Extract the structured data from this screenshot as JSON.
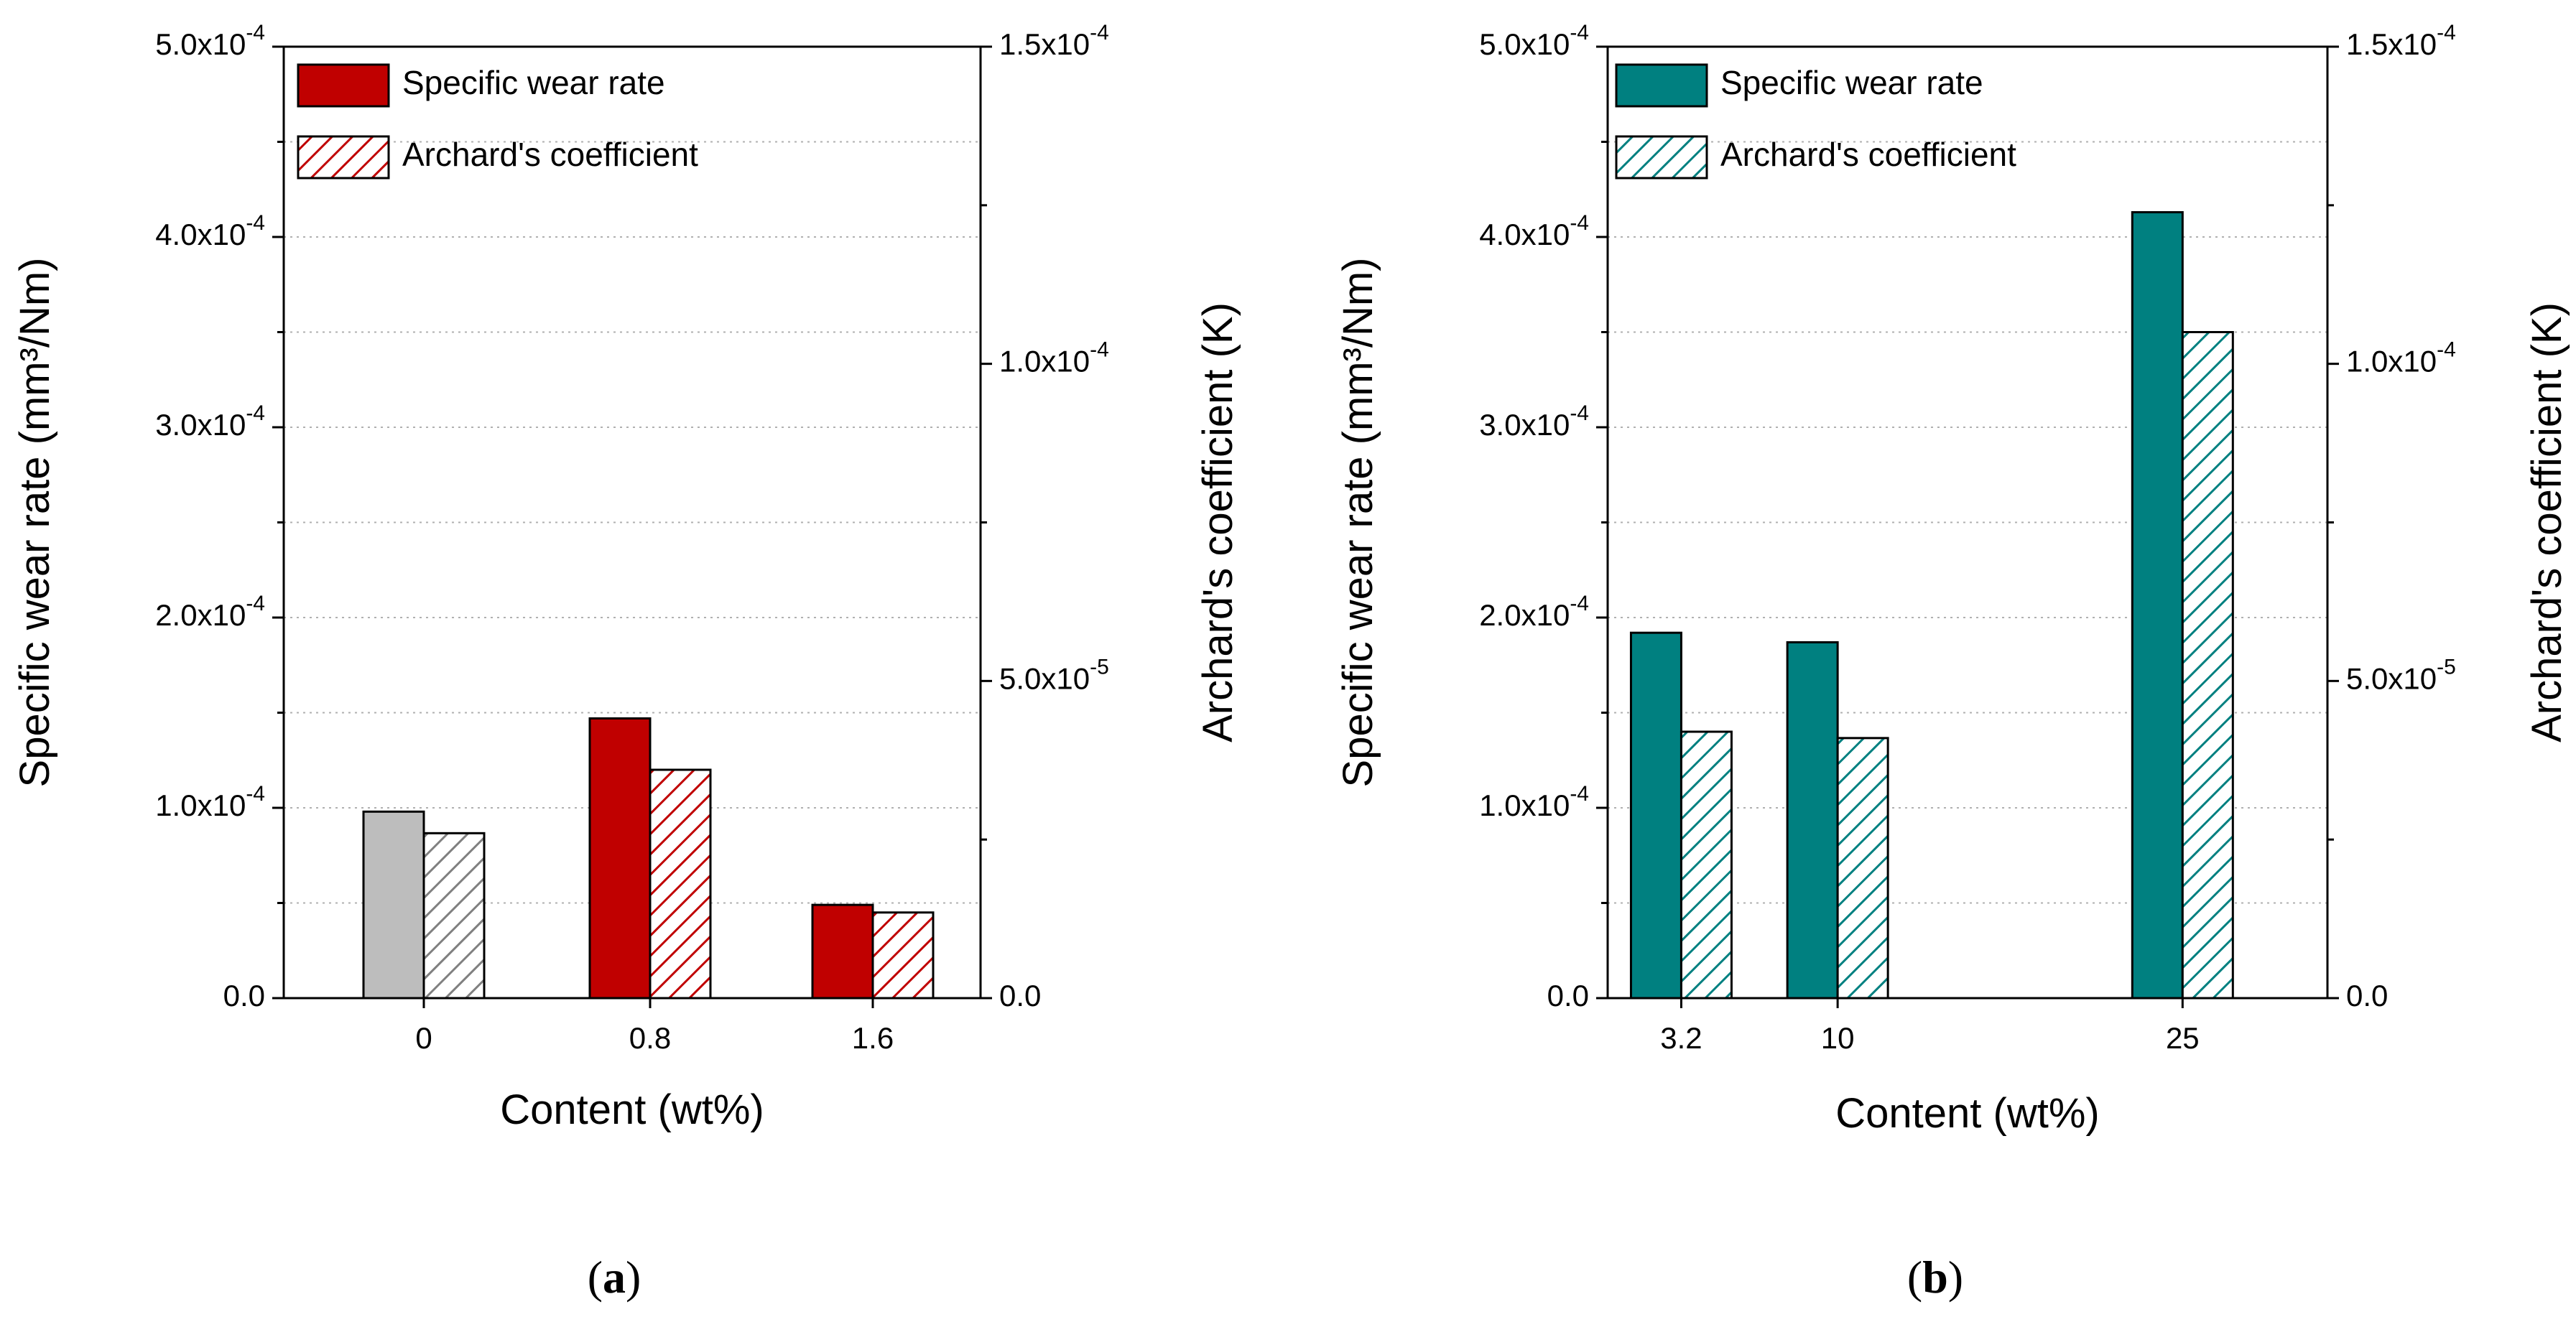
{
  "chart_data": [
    {
      "type": "bar",
      "panel_label": "(a)",
      "panel_letter": "a",
      "categories": [
        "0",
        "0.8",
        "1.6"
      ],
      "series": [
        {
          "name": "Specific wear rate",
          "axis": "left",
          "values": [
            9.8e-05,
            0.000147,
            4.9e-05
          ]
        },
        {
          "name": "Archard's coefficient",
          "axis": "right",
          "values": [
            2.6e-05,
            3.6e-05,
            1.35e-05
          ]
        }
      ],
      "bar_colors": [
        "#bdbdbd",
        "#c00000",
        "#c00000"
      ],
      "hatch_colors": [
        "#808080",
        "#c00000",
        "#c00000"
      ],
      "legend_color": "#c00000",
      "xlabel": "Content (wt%)",
      "ylabel_left": "Specific wear rate (mm³/Nm)",
      "ylabel_right": "Archard's coefficient (K)",
      "ylim_left": [
        0,
        0.0005
      ],
      "ylim_right": [
        0,
        0.00015
      ],
      "left_ticks": [
        {
          "value": 0,
          "mant": "0.0",
          "exp": ""
        },
        {
          "value": 0.0001,
          "mant": "1.0x10",
          "exp": "-4"
        },
        {
          "value": 0.0002,
          "mant": "2.0x10",
          "exp": "-4"
        },
        {
          "value": 0.0003,
          "mant": "3.0x10",
          "exp": "-4"
        },
        {
          "value": 0.0004,
          "mant": "4.0x10",
          "exp": "-4"
        },
        {
          "value": 0.0005,
          "mant": "5.0x10",
          "exp": "-4"
        }
      ],
      "right_ticks": [
        {
          "value": 0,
          "mant": "0.0",
          "exp": ""
        },
        {
          "value": 5e-05,
          "mant": "5.0x10",
          "exp": "-5"
        },
        {
          "value": 0.0001,
          "mant": "1.0x10",
          "exp": "-4"
        },
        {
          "value": 0.00015,
          "mant": "1.5x10",
          "exp": "-4"
        }
      ],
      "grid": true,
      "legend": "top-left"
    },
    {
      "type": "bar",
      "panel_label": "(b)",
      "panel_letter": "b",
      "categories": [
        "3.2",
        "10",
        "25"
      ],
      "category_positions": [
        3.2,
        10,
        25
      ],
      "xlim": [
        0,
        31.3
      ],
      "series": [
        {
          "name": "Specific wear rate",
          "axis": "left",
          "values": [
            0.000192,
            0.000187,
            0.000413
          ]
        },
        {
          "name": "Archard's coefficient",
          "axis": "right",
          "values": [
            4.2e-05,
            4.1e-05,
            0.000105
          ]
        }
      ],
      "bar_colors": [
        "#008080",
        "#008080",
        "#008080"
      ],
      "hatch_colors": [
        "#008080",
        "#008080",
        "#008080"
      ],
      "legend_color": "#008080",
      "xlabel": "Content (wt%)",
      "ylabel_left": "Specific wear rate (mm³/Nm)",
      "ylabel_right": "Archard's coefficient (K)",
      "ylim_left": [
        0,
        0.0005
      ],
      "ylim_right": [
        0,
        0.00015
      ],
      "left_ticks": [
        {
          "value": 0,
          "mant": "0.0",
          "exp": ""
        },
        {
          "value": 0.0001,
          "mant": "1.0x10",
          "exp": "-4"
        },
        {
          "value": 0.0002,
          "mant": "2.0x10",
          "exp": "-4"
        },
        {
          "value": 0.0003,
          "mant": "3.0x10",
          "exp": "-4"
        },
        {
          "value": 0.0004,
          "mant": "4.0x10",
          "exp": "-4"
        },
        {
          "value": 0.0005,
          "mant": "5.0x10",
          "exp": "-4"
        }
      ],
      "right_ticks": [
        {
          "value": 0,
          "mant": "0.0",
          "exp": ""
        },
        {
          "value": 5e-05,
          "mant": "5.0x10",
          "exp": "-5"
        },
        {
          "value": 0.0001,
          "mant": "1.0x10",
          "exp": "-4"
        },
        {
          "value": 0.00015,
          "mant": "1.5x10",
          "exp": "-4"
        }
      ],
      "grid": true,
      "legend": "top-left"
    }
  ]
}
